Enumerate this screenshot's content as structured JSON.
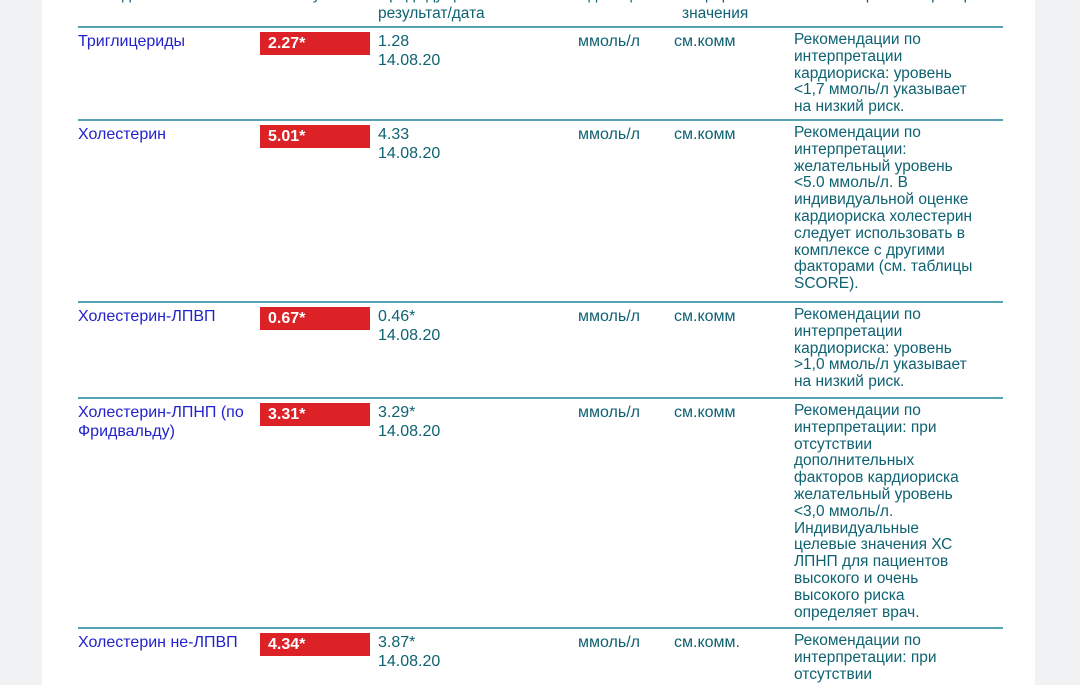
{
  "colors": {
    "page_background": "#f1f2f4",
    "document_background": "#ffffff",
    "row_divider_teal": "#55a3b2",
    "test_name_blue": "#2222cc",
    "table_text_teal": "#0e6272",
    "abnormal_badge_red": "#dc2127",
    "badge_text": "#ffffff"
  },
  "header": {
    "columns": [
      {
        "label": "Исследование"
      },
      {
        "label": "Результат"
      },
      {
        "label": "Предыдущий\nрезультат/дата"
      },
      {
        "label": "Единицы"
      },
      {
        "label": "Референсные\nзначения"
      },
      {
        "label": "Комментарии лаборатории"
      }
    ]
  },
  "rows": [
    {
      "name": "Триглицериды",
      "result": "2.27*",
      "previous": "1.28\n14.08.20",
      "units": "ммоль/л",
      "reference": "см.комм",
      "comment": "Рекомендации по\nинтерпретации\nкардиориска: уровень\n<1,7 ммоль/л указывает\nна низкий риск."
    },
    {
      "name": "Холестерин",
      "result": "5.01*",
      "previous": "4.33\n14.08.20",
      "units": "ммоль/л",
      "reference": "см.комм",
      "comment": "Рекомендации по\nинтерпретации:\nжелательный уровень\n<5.0 ммоль/л. В\nиндивидуальной оценке\nкардиориска холестерин\nследует использовать в\nкомплексе с другими\nфакторами (см. таблицы\nSCORE)."
    },
    {
      "name": "Холестерин-ЛПВП",
      "result": "0.67*",
      "previous": "0.46*\n14.08.20",
      "units": "ммоль/л",
      "reference": "см.комм",
      "comment": "Рекомендации по\nинтерпретации\nкардиориска: уровень\n>1,0 ммоль/л указывает\nна низкий риск."
    },
    {
      "name": "Холестерин-ЛПНП (по\nФридвальду)",
      "result": "3.31*",
      "previous": "3.29*\n14.08.20",
      "units": "ммоль/л",
      "reference": "см.комм",
      "comment": "Рекомендации по\nинтерпретации: при\nотсутствии\nдополнительных\nфакторов кардиориска\nжелательный уровень\n<3,0 ммоль/л.\nИндивидуальные\nцелевые значения ХС\nЛПНП для пациентов\nвысокого и очень\nвысокого риска\nопределяет врач."
    },
    {
      "name": "Холестерин не-ЛПВП",
      "result": "4.34*",
      "previous": "3.87*\n14.08.20",
      "units": "ммоль/л",
      "reference": "см.комм.",
      "comment": "Рекомендации по\nинтерпретации: при\nотсутствии\nдополнительных\nфакторов кардиориска"
    }
  ]
}
